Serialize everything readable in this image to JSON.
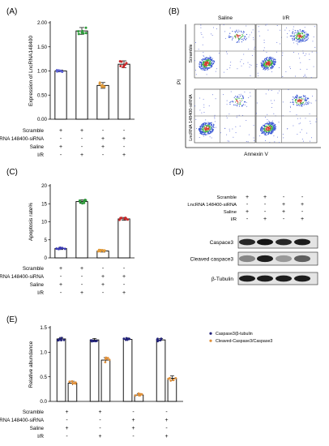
{
  "panels": {
    "A": {
      "label": "(A)"
    },
    "B": {
      "label": "(B)"
    },
    "C": {
      "label": "(C)"
    },
    "D": {
      "label": "(D)"
    },
    "E": {
      "label": "(E)"
    }
  },
  "conditions": {
    "rows": [
      "Scramble",
      "LncRNA 148400-siRNA",
      "Saline",
      "I/R"
    ],
    "signs": [
      [
        "+",
        "+",
        "-",
        "-"
      ],
      [
        "-",
        "-",
        "+",
        "+"
      ],
      [
        "+",
        "-",
        "+",
        "-"
      ],
      [
        "-",
        "+",
        "-",
        "+"
      ]
    ]
  },
  "flow": {
    "col_labels": [
      "Saline",
      "I/R"
    ],
    "row_labels": [
      "Scramble",
      "LncRNA 148400-siRNA"
    ],
    "ylabel": "PI",
    "xlabel": "Annexin V"
  },
  "western": {
    "bands": [
      "Caspace3",
      "Cleaved caspace3",
      "β-Tubulin"
    ],
    "intensity": [
      [
        0.85,
        0.95,
        0.85,
        0.9
      ],
      [
        0.35,
        0.9,
        0.25,
        0.55
      ],
      [
        0.9,
        0.9,
        0.9,
        0.9
      ]
    ]
  },
  "chart_data": [
    {
      "panel": "A",
      "type": "bar",
      "ylabel": "Expression of LncRNA148400",
      "ylim": [
        0,
        2.0
      ],
      "yticks": [
        "0.00",
        "0.50",
        "1.00",
        "1.50",
        "2.00"
      ],
      "ytick_values": [
        0,
        0.5,
        1.0,
        1.5,
        2.0
      ],
      "values": [
        1.0,
        1.83,
        0.7,
        1.14
      ],
      "errors": [
        0.02,
        0.07,
        0.06,
        0.07
      ],
      "dot_colors": [
        "#5a5fd0",
        "#2d9a3a",
        "#e09a3a",
        "#c8282a"
      ]
    },
    {
      "panel": "C",
      "type": "bar",
      "ylabel": "Apoptosis rate%",
      "ylim": [
        0,
        20
      ],
      "yticks": [
        "0",
        "5",
        "10",
        "15",
        "20"
      ],
      "ytick_values": [
        0,
        5,
        10,
        15,
        20
      ],
      "values": [
        2.6,
        15.6,
        1.9,
        10.8
      ],
      "errors": [
        0.3,
        0.5,
        0.3,
        0.4
      ],
      "dot_colors": [
        "#3c3cb8",
        "#2d9a3a",
        "#e09a3a",
        "#c8282a"
      ]
    },
    {
      "panel": "E",
      "type": "bar",
      "ylabel": "Relative abundance",
      "ylim": [
        0,
        1.5
      ],
      "yticks": [
        "0.0",
        "0.5",
        "1.0",
        "1.5"
      ],
      "ytick_values": [
        0,
        0.5,
        1.0,
        1.5
      ],
      "legend": "top-right",
      "series": [
        {
          "name": "Caspase3/β-tubulin",
          "values": [
            1.27,
            1.25,
            1.26,
            1.25
          ],
          "errors": [
            0.03,
            0.03,
            0.03,
            0.03
          ],
          "color": "#23237a"
        },
        {
          "name": "Cleaved-Caspase3/Caspase3",
          "values": [
            0.37,
            0.84,
            0.13,
            0.47
          ],
          "errors": [
            0.04,
            0.05,
            0.03,
            0.05
          ],
          "color": "#e0903a"
        }
      ]
    }
  ]
}
